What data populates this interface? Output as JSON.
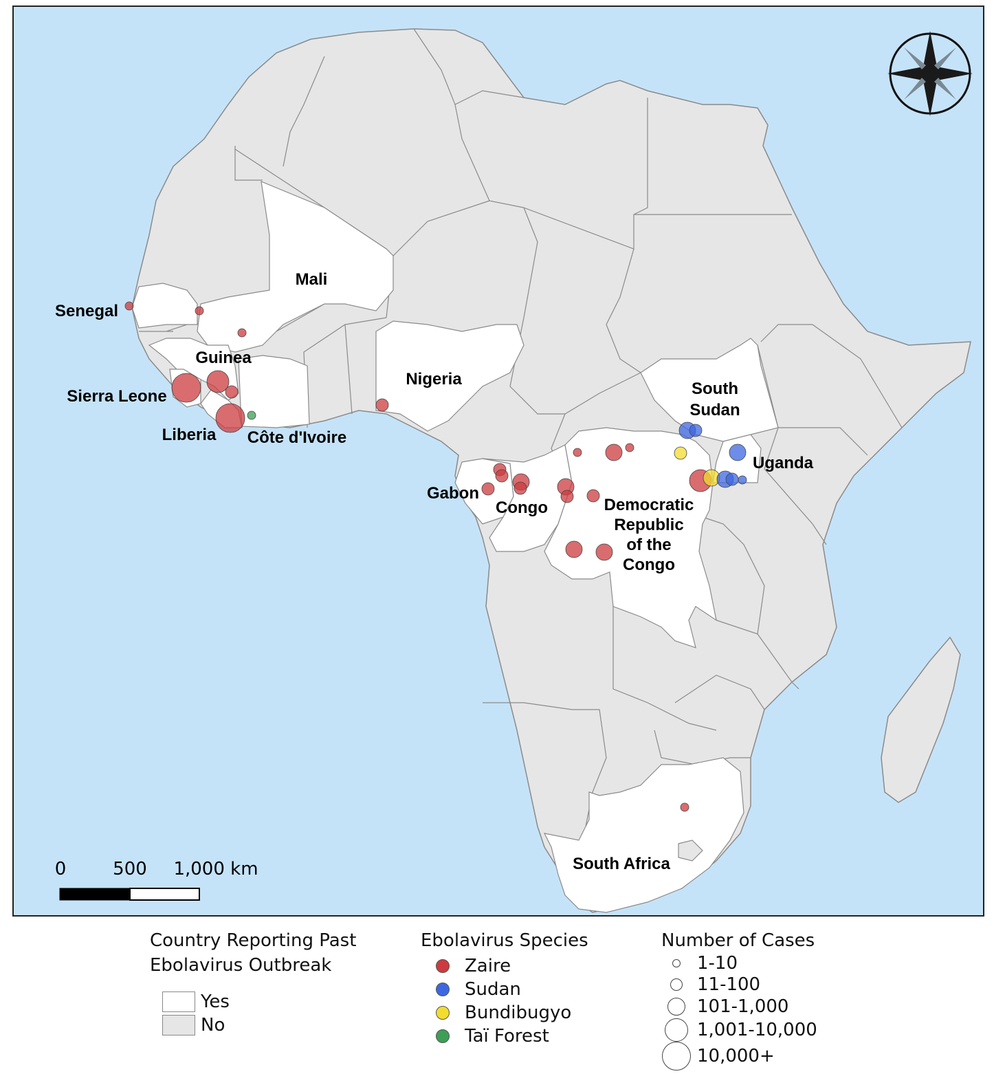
{
  "colors": {
    "ocean": "#c5e3f8",
    "no_country": "#e6e6e6",
    "yes_country": "#ffffff",
    "border": "#8a8a8a",
    "zaire": "#cc3b3f",
    "sudan": "#3d67e0",
    "bundibugyo": "#f2dc2e",
    "tai_forest": "#3d9e56"
  },
  "country_labels": {
    "senegal": "Senegal",
    "mali": "Mali",
    "guinea": "Guinea",
    "sierra_leone": "Sierra Leone",
    "liberia": "Liberia",
    "cote_divoire": "Côte d'Ivoire",
    "nigeria": "Nigeria",
    "south_sudan_1": "South",
    "south_sudan_2": "Sudan",
    "uganda": "Uganda",
    "gabon": "Gabon",
    "congo": "Congo",
    "drc_1": "Democratic",
    "drc_2": "Republic",
    "drc_3": "of the",
    "drc_4": "Congo",
    "south_africa": "South Africa"
  },
  "scale_bar": {
    "tick_0": "0",
    "tick_1": "500",
    "tick_2": "1,000 km"
  },
  "outbreaks": [
    {
      "species": "zaire",
      "country": "Senegal",
      "cases": "1-10"
    },
    {
      "species": "zaire",
      "country": "Mali",
      "cases": "1-10"
    },
    {
      "species": "zaire",
      "country": "Mali",
      "cases": "1-10"
    },
    {
      "species": "zaire",
      "country": "Sierra Leone",
      "cases": "10,000+"
    },
    {
      "species": "zaire",
      "country": "Guinea",
      "cases": "1,001-10,000"
    },
    {
      "species": "zaire",
      "country": "Guinea",
      "cases": "11-100"
    },
    {
      "species": "zaire",
      "country": "Liberia",
      "cases": "10,000+"
    },
    {
      "species": "tai_forest",
      "country": "Côte d'Ivoire",
      "cases": "1-10"
    },
    {
      "species": "zaire",
      "country": "Nigeria",
      "cases": "11-100"
    },
    {
      "species": "zaire",
      "country": "Gabon",
      "cases": "11-100"
    },
    {
      "species": "zaire",
      "country": "Gabon",
      "cases": "11-100"
    },
    {
      "species": "zaire",
      "country": "Gabon",
      "cases": "11-100"
    },
    {
      "species": "zaire",
      "country": "Congo",
      "cases": "101-1,000"
    },
    {
      "species": "zaire",
      "country": "Congo",
      "cases": "11-100"
    },
    {
      "species": "zaire",
      "country": "Democratic Republic of the Congo",
      "cases": "101-1,000"
    },
    {
      "species": "zaire",
      "country": "Democratic Republic of the Congo",
      "cases": "11-100"
    },
    {
      "species": "zaire",
      "country": "Democratic Republic of the Congo",
      "cases": "11-100"
    },
    {
      "species": "zaire",
      "country": "Democratic Republic of the Congo",
      "cases": "1-10"
    },
    {
      "species": "zaire",
      "country": "Democratic Republic of the Congo",
      "cases": "101-1,000"
    },
    {
      "species": "zaire",
      "country": "Democratic Republic of the Congo",
      "cases": "1-10"
    },
    {
      "species": "zaire",
      "country": "Democratic Republic of the Congo",
      "cases": "101-1,000"
    },
    {
      "species": "zaire",
      "country": "Democratic Republic of the Congo",
      "cases": "101-1,000"
    },
    {
      "species": "zaire",
      "country": "Democratic Republic of the Congo",
      "cases": "1,001-10,000"
    },
    {
      "species": "bundibugyo",
      "country": "Democratic Republic of the Congo",
      "cases": "11-100"
    },
    {
      "species": "bundibugyo",
      "country": "Uganda",
      "cases": "101-1,000"
    },
    {
      "species": "sudan",
      "country": "South Sudan",
      "cases": "101-1,000"
    },
    {
      "species": "sudan",
      "country": "South Sudan",
      "cases": "11-100"
    },
    {
      "species": "sudan",
      "country": "Uganda",
      "cases": "101-1,000"
    },
    {
      "species": "sudan",
      "country": "Uganda",
      "cases": "101-1,000"
    },
    {
      "species": "sudan",
      "country": "Uganda",
      "cases": "11-100"
    },
    {
      "species": "sudan",
      "country": "Uganda",
      "cases": "1-10"
    },
    {
      "species": "zaire",
      "country": "South Africa",
      "cases": "1-10"
    }
  ],
  "legend": {
    "country": {
      "title": "Country Reporting Past\nEbolavirus Outbreak",
      "yes": "Yes",
      "no": "No"
    },
    "species": {
      "title": "Ebolavirus Species",
      "items": [
        "Zaire",
        "Sudan",
        "Bundibugyo",
        "Taï Forest"
      ]
    },
    "cases": {
      "title": "Number of Cases",
      "items": [
        "1-10",
        "11-100",
        "101-1,000",
        "1,001-10,000",
        "10,000+"
      ]
    }
  }
}
